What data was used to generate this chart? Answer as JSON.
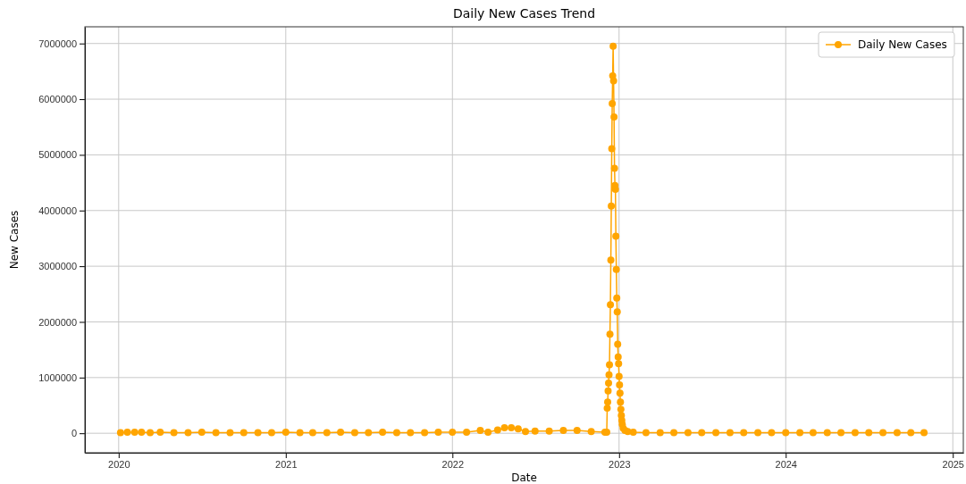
{
  "chart_data": {
    "type": "line",
    "title": "Daily New Cases Trend",
    "xlabel": "Date",
    "ylabel": "New Cases",
    "x": [
      "2020-01-05",
      "2020-01-20",
      "2020-02-05",
      "2020-02-20",
      "2020-03-10",
      "2020-04-01",
      "2020-05-01",
      "2020-06-01",
      "2020-07-01",
      "2020-08-01",
      "2020-09-01",
      "2020-10-01",
      "2020-11-01",
      "2020-12-01",
      "2021-01-01",
      "2021-02-01",
      "2021-03-01",
      "2021-04-01",
      "2021-05-01",
      "2021-06-01",
      "2021-07-01",
      "2021-08-01",
      "2021-09-01",
      "2021-10-01",
      "2021-11-01",
      "2021-12-01",
      "2022-01-01",
      "2022-02-01",
      "2022-03-03",
      "2022-03-20",
      "2022-04-10",
      "2022-04-25",
      "2022-05-10",
      "2022-05-25",
      "2022-06-10",
      "2022-07-01",
      "2022-08-01",
      "2022-09-01",
      "2022-10-01",
      "2022-11-01",
      "2022-12-01",
      "2022-12-05",
      "2022-12-06",
      "2022-12-07",
      "2022-12-08",
      "2022-12-09",
      "2022-12-10",
      "2022-12-11",
      "2022-12-12",
      "2022-12-13",
      "2022-12-14",
      "2022-12-15",
      "2022-12-16",
      "2022-12-17",
      "2022-12-18",
      "2022-12-19",
      "2022-12-20",
      "2022-12-21",
      "2022-12-22",
      "2022-12-23",
      "2022-12-24",
      "2022-12-25",
      "2022-12-26",
      "2022-12-27",
      "2022-12-28",
      "2022-12-29",
      "2022-12-30",
      "2022-12-31",
      "2023-01-01",
      "2023-01-02",
      "2023-01-03",
      "2023-01-04",
      "2023-01-05",
      "2023-01-06",
      "2023-01-07",
      "2023-01-08",
      "2023-01-10",
      "2023-01-14",
      "2023-01-20",
      "2023-02-01",
      "2023-03-01",
      "2023-04-01",
      "2023-05-01",
      "2023-06-01",
      "2023-07-01",
      "2023-08-01",
      "2023-09-01",
      "2023-10-01",
      "2023-11-01",
      "2023-12-01",
      "2024-01-01",
      "2024-02-01",
      "2024-03-01",
      "2024-04-01",
      "2024-05-01",
      "2024-06-01",
      "2024-07-01",
      "2024-08-01",
      "2024-09-01",
      "2024-10-01",
      "2024-10-30"
    ],
    "series": [
      {
        "name": "Daily New Cases",
        "color": "#ffa500",
        "values": [
          10000,
          20000,
          20000,
          20000,
          10000,
          20000,
          10000,
          10000,
          20000,
          10000,
          10000,
          10000,
          10000,
          10000,
          20000,
          10000,
          10000,
          10000,
          20000,
          10000,
          10000,
          20000,
          10000,
          10000,
          10000,
          20000,
          20000,
          20000,
          50000,
          20000,
          60000,
          100000,
          100000,
          80000,
          30000,
          40000,
          40000,
          50000,
          50000,
          30000,
          20000,
          20000,
          450000,
          560000,
          760000,
          900000,
          1050000,
          1230000,
          1780000,
          2310000,
          3110000,
          4080000,
          5110000,
          5920000,
          6420000,
          6950000,
          6330000,
          5680000,
          4760000,
          4450000,
          4380000,
          3540000,
          2940000,
          2430000,
          2180000,
          1600000,
          1370000,
          1250000,
          1020000,
          870000,
          720000,
          560000,
          430000,
          320000,
          230000,
          160000,
          90000,
          50000,
          30000,
          20000,
          10000,
          10000,
          10000,
          10000,
          10000,
          10000,
          10000,
          10000,
          10000,
          10000,
          10000,
          10000,
          10000,
          10000,
          10000,
          10000,
          10000,
          10000,
          10000,
          10000,
          10000
        ]
      }
    ],
    "xlim": [
      "2019-10-19",
      "2025-01-24"
    ],
    "xticks": [
      {
        "value": "2020-01-01",
        "label": "2020"
      },
      {
        "value": "2021-01-01",
        "label": "2021"
      },
      {
        "value": "2022-01-01",
        "label": "2022"
      },
      {
        "value": "2023-01-01",
        "label": "2023"
      },
      {
        "value": "2024-01-01",
        "label": "2024"
      },
      {
        "value": "2025-01-01",
        "label": "2025"
      }
    ],
    "ylim": [
      -350000,
      7300000
    ],
    "yticks": [
      0,
      1000000,
      2000000,
      3000000,
      4000000,
      5000000,
      6000000,
      7000000
    ],
    "grid": true,
    "legend": "top right",
    "marker": "circle",
    "line_style": "solid"
  }
}
